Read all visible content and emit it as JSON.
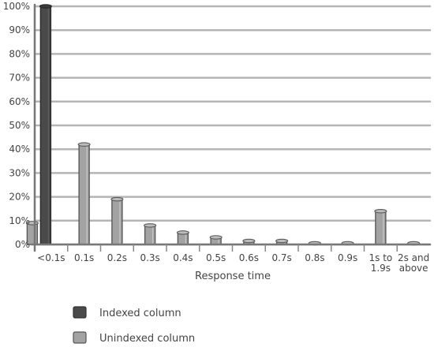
{
  "chart_data": {
    "type": "bar",
    "categories": [
      "<0.1s",
      "0.1s",
      "0.2s",
      "0.3s",
      "0.4s",
      "0.5s",
      "0.6s",
      "0.7s",
      "0.8s",
      "0.9s",
      "1s to 1.9s",
      "2s and above"
    ],
    "category_lines": [
      [
        "<0.1s"
      ],
      [
        "0.1s"
      ],
      [
        "0.2s"
      ],
      [
        "0.3s"
      ],
      [
        "0.4s"
      ],
      [
        "0.5s"
      ],
      [
        "0.6s"
      ],
      [
        "0.7s"
      ],
      [
        "0.8s"
      ],
      [
        "0.9s"
      ],
      [
        "1s to",
        "1.9s"
      ],
      [
        "2s and",
        "above"
      ]
    ],
    "series": [
      {
        "name": "Indexed column",
        "color": "#4a4a4a",
        "values": [
          100,
          0,
          0,
          0,
          0,
          0,
          0,
          0,
          0,
          0,
          0,
          0
        ]
      },
      {
        "name": "Unindexed column",
        "color": "#a3a3a3",
        "values": [
          9,
          42,
          19,
          8,
          5,
          3,
          1.5,
          1.5,
          0.5,
          0.5,
          14,
          0.5
        ]
      }
    ],
    "y_ticks": [
      "0%",
      "10%",
      "20%",
      "30%",
      "40%",
      "50%",
      "60%",
      "70%",
      "80%",
      "90%",
      "100%"
    ],
    "ylim": [
      0,
      100
    ],
    "xlabel": "Response time",
    "ylabel": "",
    "grid": true,
    "legend_position": "bottom-left"
  }
}
